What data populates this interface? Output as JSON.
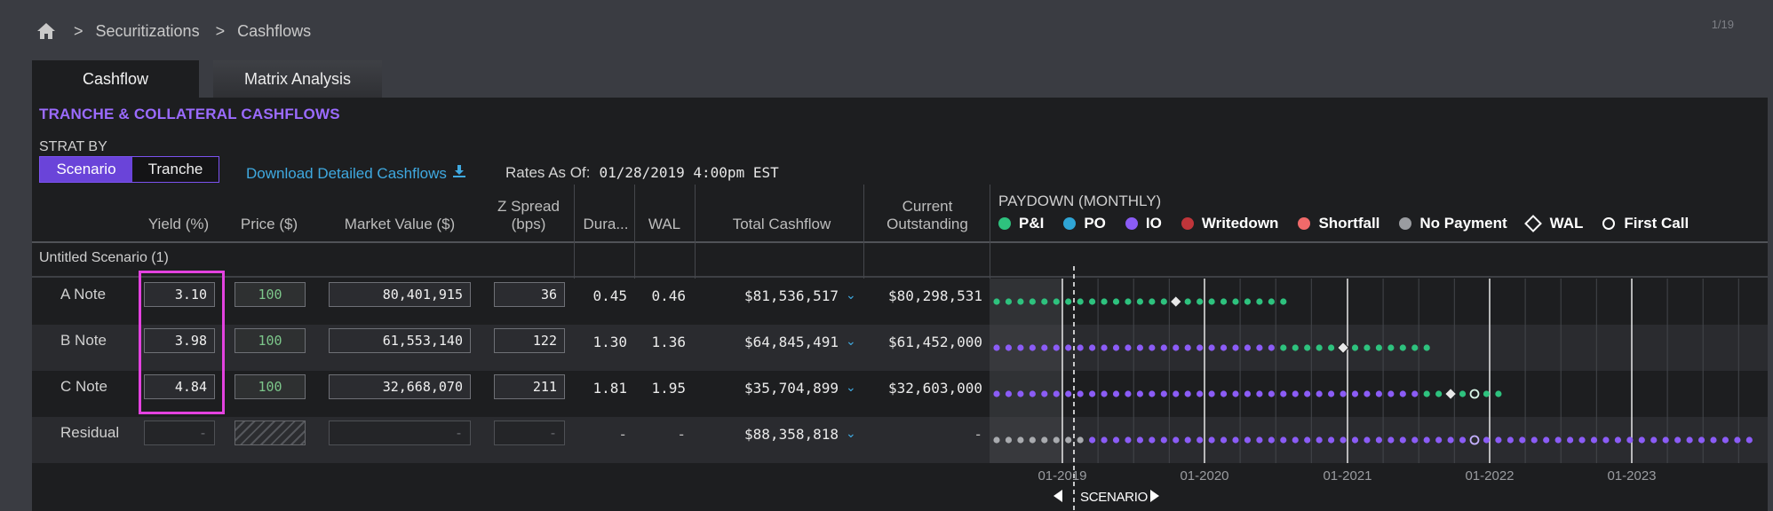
{
  "breadcrumb": {
    "home_icon": "home-icon",
    "items": [
      "Securitizations",
      "Cashflows"
    ],
    "separator": ">"
  },
  "page_count": "1/19",
  "tabs": [
    {
      "label": "Cashflow",
      "active": true
    },
    {
      "label": "Matrix Analysis",
      "active": false
    }
  ],
  "section_title": "TRANCHE & COLLATERAL CASHFLOWS",
  "strat_by": {
    "label": "STRAT BY",
    "options": [
      "Scenario",
      "Tranche"
    ],
    "selected": "Scenario"
  },
  "download_label": "Download Detailed Cashflows",
  "rates": {
    "label": "Rates As Of:",
    "value": "01/28/2019 4:00pm EST"
  },
  "columns": {
    "yield": "Yield (%)",
    "price": "Price ($)",
    "market_value": "Market Value ($)",
    "z_spread_1": "Z Spread",
    "z_spread_2": "(bps)",
    "duration": "Dura...",
    "wal": "WAL",
    "total_cashflow": "Total Cashflow",
    "current_1": "Current",
    "current_2": "Outstanding"
  },
  "paydown": {
    "title": "PAYDOWN (MONTHLY)",
    "legend": [
      {
        "label": "P&I",
        "color": "#2ec27e"
      },
      {
        "label": "PO",
        "color": "#2fa5d6"
      },
      {
        "label": "IO",
        "color": "#8b5cf6"
      },
      {
        "label": "Writedown",
        "color": "#c0353a"
      },
      {
        "label": "Shortfall",
        "color": "#f06a6a"
      },
      {
        "label": "No Payment",
        "color": "#9a9ca0"
      },
      {
        "label": "WAL",
        "marker": "diamond"
      },
      {
        "label": "First Call",
        "marker": "circle"
      }
    ],
    "axis": [
      "01-2019",
      "01-2020",
      "01-2021",
      "01-2022",
      "01-2023"
    ],
    "scenario_label": "SCENARIO"
  },
  "scenario_name": "Untitled Scenario (1)",
  "rows": [
    {
      "name": "A Note",
      "yield": "3.10",
      "price": "100",
      "market_value": "80,401,915",
      "z_spread": "36",
      "duration": "0.45",
      "wal": "0.46",
      "total_cashflow": "$81,536,517",
      "current": "$80,298,531",
      "dots": {
        "nopay": 0,
        "io": 0,
        "pi": 25,
        "wal_index": 15,
        "first_call": null
      }
    },
    {
      "name": "B Note",
      "yield": "3.98",
      "price": "100",
      "market_value": "61,553,140",
      "z_spread": "122",
      "duration": "1.30",
      "wal": "1.36",
      "total_cashflow": "$64,845,491",
      "current": "$61,452,000",
      "dots": {
        "nopay": 0,
        "io": 24,
        "pi": 13,
        "wal_index": 29,
        "first_call": null
      }
    },
    {
      "name": "C Note",
      "yield": "4.84",
      "price": "100",
      "market_value": "32,668,070",
      "z_spread": "211",
      "duration": "1.81",
      "wal": "1.95",
      "total_cashflow": "$35,704,899",
      "current": "$32,603,000",
      "dots": {
        "nopay": 0,
        "io": 36,
        "pi": 7,
        "wal_index": 38,
        "first_call": 40
      }
    },
    {
      "name": "Residual",
      "yield": "-",
      "price": "",
      "market_value": "-",
      "z_spread": "-",
      "duration": "-",
      "wal": "-",
      "total_cashflow": "$88,358,818",
      "current": "-",
      "dots": {
        "nopay": 8,
        "io": 56,
        "pi": 0,
        "wal_index": null,
        "first_call": 40
      }
    }
  ]
}
